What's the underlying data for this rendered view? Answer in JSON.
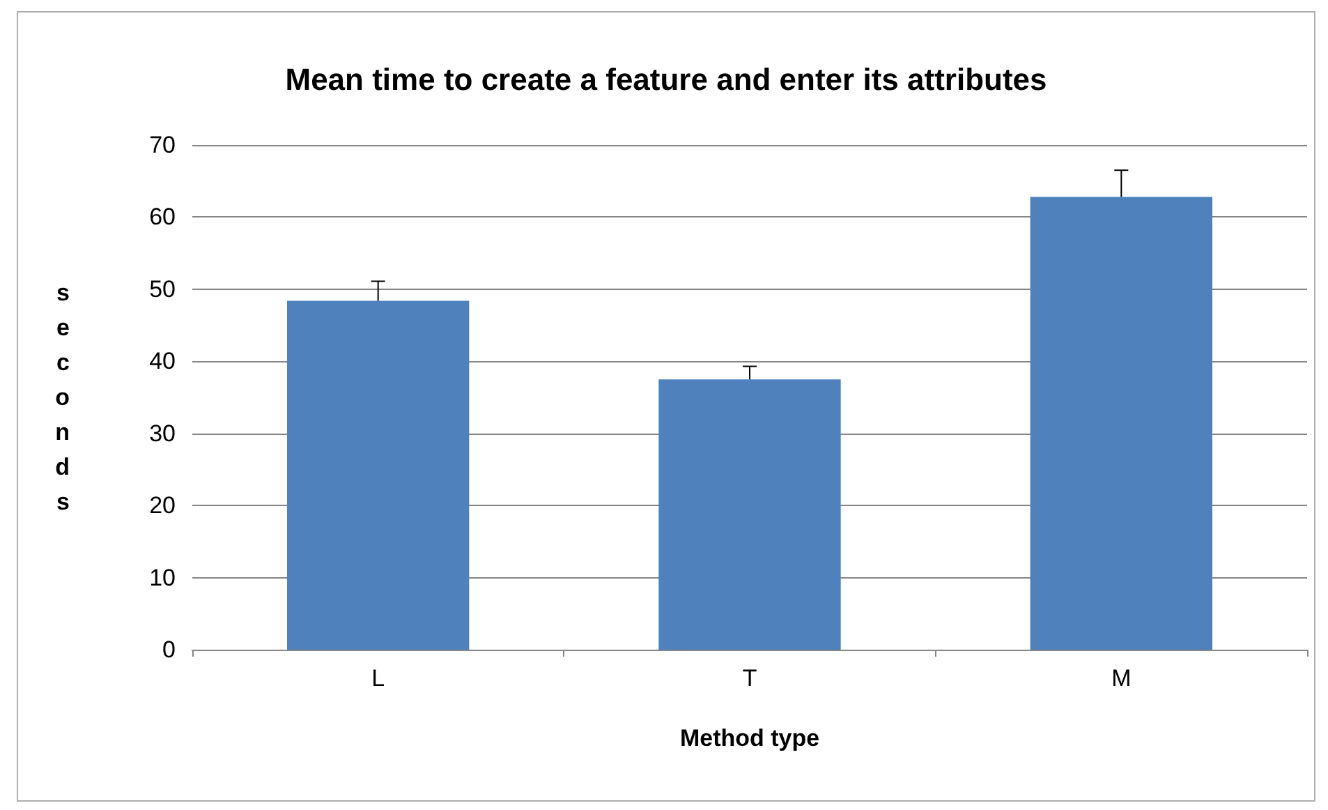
{
  "chart_data": {
    "type": "bar",
    "title": "Mean time to create a feature and enter its attributes",
    "xlabel": "Method type",
    "ylabel": "seconds",
    "categories": [
      "L",
      "T",
      "M"
    ],
    "values": [
      48.4,
      37.5,
      62.8
    ],
    "errors": [
      [
        48.4,
        51.1
      ],
      [
        37.5,
        39.3
      ],
      [
        62.8,
        66.5
      ]
    ],
    "color": "#4f81bd",
    "ylim": [
      0,
      70
    ],
    "yticks": [
      0,
      10,
      20,
      30,
      40,
      50,
      60,
      70
    ],
    "grid": "y"
  }
}
